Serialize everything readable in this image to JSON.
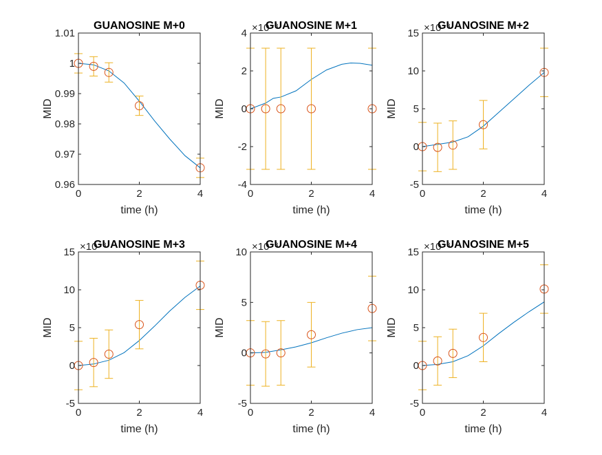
{
  "chart_data": [
    {
      "type": "line",
      "title": "GUANOSINE M+0",
      "xlabel": "time (h)",
      "ylabel": "MID",
      "exponent_label": "",
      "xlim": [
        0,
        4
      ],
      "ylim": [
        0.96,
        1.01
      ],
      "xticks": [
        0,
        2,
        4
      ],
      "yticks": [
        0.96,
        0.97,
        0.98,
        0.99,
        1,
        1.01
      ],
      "yticklabels": [
        "0.96",
        "0.97",
        "0.98",
        "0.99",
        "1",
        "1.01"
      ],
      "grid": false,
      "fit": {
        "x": [
          0,
          0.5,
          1,
          1.5,
          2,
          2.5,
          3,
          3.5,
          4
        ],
        "y": [
          1.0,
          0.9995,
          0.9975,
          0.9935,
          0.9875,
          0.981,
          0.975,
          0.9695,
          0.9655
        ]
      },
      "points": {
        "x": [
          0,
          0.5,
          1,
          2,
          4
        ],
        "y": [
          1.0,
          0.999,
          0.997,
          0.986,
          0.9655
        ],
        "err": [
          0.0032,
          0.0032,
          0.0032,
          0.0032,
          0.0032
        ]
      }
    },
    {
      "type": "line",
      "title": "GUANOSINE M+1",
      "xlabel": "time (h)",
      "ylabel": "MID",
      "exponent_label": "×10⁻³",
      "xlim": [
        0,
        4
      ],
      "ylim": [
        -4,
        4
      ],
      "xticks": [
        0,
        2,
        4
      ],
      "yticks": [
        -4,
        -2,
        0,
        2,
        4
      ],
      "yticklabels": [
        "-4",
        "-2",
        "0",
        "2",
        "4"
      ],
      "grid": false,
      "fit": {
        "x": [
          0,
          0.5,
          0.75,
          1,
          1.5,
          2,
          2.5,
          3,
          3.3,
          3.6,
          4
        ],
        "y": [
          0,
          0.3,
          0.55,
          0.62,
          0.95,
          1.55,
          2.05,
          2.35,
          2.42,
          2.4,
          2.3
        ]
      },
      "points": {
        "x": [
          0,
          0.5,
          1,
          2,
          4
        ],
        "y": [
          0,
          0,
          0,
          0,
          0
        ],
        "err": [
          3.2,
          3.2,
          3.2,
          3.2,
          3.2
        ]
      }
    },
    {
      "type": "line",
      "title": "GUANOSINE M+2",
      "xlabel": "time (h)",
      "ylabel": "MID",
      "exponent_label": "×10⁻³",
      "xlim": [
        0,
        4
      ],
      "ylim": [
        -5,
        15
      ],
      "xticks": [
        0,
        2,
        4
      ],
      "yticks": [
        -5,
        0,
        5,
        10,
        15
      ],
      "yticklabels": [
        "-5",
        "0",
        "5",
        "10",
        "15"
      ],
      "grid": false,
      "fit": {
        "x": [
          0,
          0.5,
          1,
          1.5,
          2,
          2.5,
          3,
          3.5,
          4
        ],
        "y": [
          0,
          0.3,
          0.6,
          1.3,
          2.7,
          4.5,
          6.3,
          8.1,
          9.8
        ]
      },
      "points": {
        "x": [
          0,
          0.5,
          1,
          2,
          4
        ],
        "y": [
          0,
          -0.1,
          0.2,
          2.9,
          9.8
        ],
        "err": [
          3.2,
          3.2,
          3.2,
          3.2,
          3.2
        ]
      }
    },
    {
      "type": "line",
      "title": "GUANOSINE M+3",
      "xlabel": "time (h)",
      "ylabel": "MID",
      "exponent_label": "×10⁻³",
      "xlim": [
        0,
        4
      ],
      "ylim": [
        -5,
        15
      ],
      "xticks": [
        0,
        2,
        4
      ],
      "yticks": [
        -5,
        0,
        5,
        10,
        15
      ],
      "yticklabels": [
        "-5",
        "0",
        "5",
        "10",
        "15"
      ],
      "grid": false,
      "fit": {
        "x": [
          0,
          0.5,
          1,
          1.5,
          2,
          2.5,
          3,
          3.5,
          4
        ],
        "y": [
          0,
          0.2,
          0.7,
          1.7,
          3.3,
          5.2,
          7.2,
          9.0,
          10.5
        ]
      },
      "points": {
        "x": [
          0,
          0.5,
          1,
          2,
          4
        ],
        "y": [
          0,
          0.4,
          1.5,
          5.4,
          10.6
        ],
        "err": [
          3.2,
          3.2,
          3.2,
          3.2,
          3.2
        ]
      }
    },
    {
      "type": "line",
      "title": "GUANOSINE M+4",
      "xlabel": "time (h)",
      "ylabel": "MID",
      "exponent_label": "×10⁻³",
      "xlim": [
        0,
        4
      ],
      "ylim": [
        -5,
        10
      ],
      "xticks": [
        0,
        2,
        4
      ],
      "yticks": [
        -5,
        0,
        5,
        10
      ],
      "yticklabels": [
        "-5",
        "0",
        "5",
        "10"
      ],
      "grid": false,
      "fit": {
        "x": [
          0,
          0.5,
          1,
          1.5,
          2,
          2.5,
          3,
          3.5,
          4
        ],
        "y": [
          0,
          0.05,
          0.3,
          0.6,
          1.0,
          1.5,
          1.95,
          2.3,
          2.5
        ]
      },
      "points": {
        "x": [
          0,
          0.5,
          1,
          2,
          4
        ],
        "y": [
          0,
          -0.1,
          0,
          1.8,
          4.4
        ],
        "err": [
          3.2,
          3.2,
          3.2,
          3.2,
          3.2
        ]
      }
    },
    {
      "type": "line",
      "title": "GUANOSINE M+5",
      "xlabel": "time (h)",
      "ylabel": "MID",
      "exponent_label": "×10⁻³",
      "xlim": [
        0,
        4
      ],
      "ylim": [
        -5,
        15
      ],
      "xticks": [
        0,
        2,
        4
      ],
      "yticks": [
        -5,
        0,
        5,
        10,
        15
      ],
      "yticklabels": [
        "-5",
        "0",
        "5",
        "10",
        "15"
      ],
      "grid": false,
      "fit": {
        "x": [
          0,
          0.5,
          1,
          1.5,
          2,
          2.5,
          3,
          3.5,
          4
        ],
        "y": [
          0,
          0.15,
          0.5,
          1.3,
          2.6,
          4.2,
          5.7,
          7.1,
          8.4
        ]
      },
      "points": {
        "x": [
          0,
          0.5,
          1,
          2,
          4
        ],
        "y": [
          0,
          0.6,
          1.6,
          3.7,
          10.1
        ],
        "err": [
          3.2,
          3.2,
          3.2,
          3.2,
          3.2
        ]
      }
    }
  ],
  "style": {
    "fit_color": "#0072BD",
    "marker_color": "#D95319",
    "errorbar_color": "#EDB120",
    "axes_color": "#262626"
  }
}
